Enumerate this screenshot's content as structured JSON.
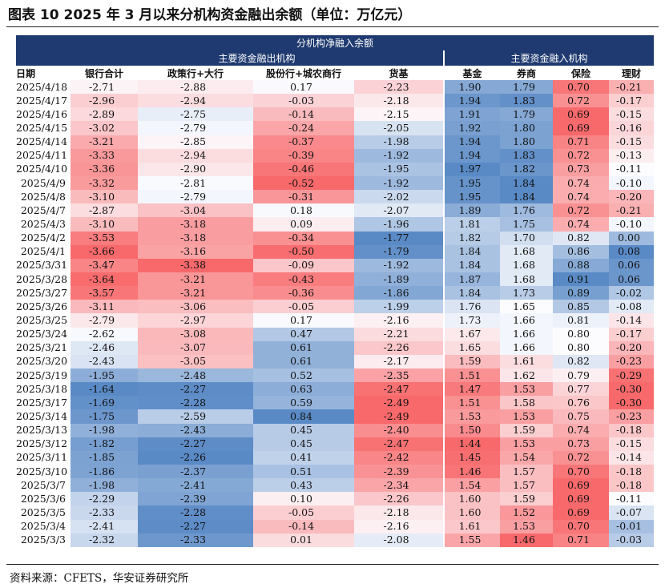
{
  "title": "图表 10 2025 年 3 月以来分机构资金融出余额（单位：万亿元）",
  "source": "资料来源：CFETS，华安证券研究所",
  "table": {
    "caption": "分机构净融入余额",
    "group_lenders": "主要资金融出机构",
    "group_borrowers": "主要资金融入机构",
    "columns": [
      "日期",
      "银行合计",
      "政策行+大行",
      "股份行+城农商行",
      "货基",
      "基金",
      "券商",
      "保险",
      "理财"
    ],
    "rows": [
      [
        "2025/4/18",
        "-2.71",
        "-2.88",
        "0.17",
        "-2.23",
        "1.90",
        "1.79",
        "0.70",
        "-0.21"
      ],
      [
        "2025/4/17",
        "-2.96",
        "-2.94",
        "-0.03",
        "-2.18",
        "1.94",
        "1.83",
        "0.72",
        "-0.17"
      ],
      [
        "2025/4/16",
        "-2.89",
        "-2.75",
        "-0.14",
        "-2.15",
        "1.91",
        "1.79",
        "0.69",
        "-0.15"
      ],
      [
        "2025/4/15",
        "-3.02",
        "-2.79",
        "-0.24",
        "-2.05",
        "1.92",
        "1.80",
        "0.69",
        "-0.16"
      ],
      [
        "2025/4/14",
        "-3.21",
        "-2.85",
        "-0.37",
        "-1.98",
        "1.94",
        "1.80",
        "0.71",
        "-0.15"
      ],
      [
        "2025/4/11",
        "-3.33",
        "-2.94",
        "-0.39",
        "-1.92",
        "1.94",
        "1.83",
        "0.72",
        "-0.13"
      ],
      [
        "2025/4/10",
        "-3.36",
        "-2.90",
        "-0.46",
        "-1.95",
        "1.97",
        "1.82",
        "0.73",
        "-0.11"
      ],
      [
        "2025/4/9",
        "-3.32",
        "-2.81",
        "-0.52",
        "-1.92",
        "1.95",
        "1.84",
        "0.74",
        "-0.10"
      ],
      [
        "2025/4/8",
        "-3.10",
        "-2.79",
        "-0.31",
        "-2.02",
        "1.95",
        "1.84",
        "0.74",
        "-0.20"
      ],
      [
        "2025/4/7",
        "-2.87",
        "-3.04",
        "0.18",
        "-2.07",
        "1.89",
        "1.76",
        "0.72",
        "-0.21"
      ],
      [
        "2025/4/3",
        "-3.10",
        "-3.18",
        "0.09",
        "-1.96",
        "1.81",
        "1.75",
        "0.74",
        "-0.10"
      ],
      [
        "2025/4/2",
        "-3.53",
        "-3.18",
        "-0.34",
        "-1.77",
        "1.82",
        "1.70",
        "0.82",
        "0.00"
      ],
      [
        "2025/4/1",
        "-3.66",
        "-3.16",
        "-0.50",
        "-1.79",
        "1.84",
        "1.68",
        "0.86",
        "0.08"
      ],
      [
        "2025/3/31",
        "-3.47",
        "-3.38",
        "-0.09",
        "-1.92",
        "1.84",
        "1.68",
        "0.88",
        "0.06"
      ],
      [
        "2025/3/28",
        "-3.64",
        "-3.21",
        "-0.43",
        "-1.89",
        "1.87",
        "1.68",
        "0.91",
        "0.06"
      ],
      [
        "2025/3/27",
        "-3.57",
        "-3.21",
        "-0.36",
        "-1.86",
        "1.84",
        "1.73",
        "0.89",
        "-0.02"
      ],
      [
        "2025/3/26",
        "-3.11",
        "-3.06",
        "-0.05",
        "-1.99",
        "1.76",
        "1.65",
        "0.85",
        "-0.08"
      ],
      [
        "2025/3/25",
        "-2.79",
        "-2.97",
        "0.17",
        "-2.16",
        "1.73",
        "1.66",
        "0.81",
        "-0.14"
      ],
      [
        "2025/3/24",
        "-2.62",
        "-3.08",
        "0.47",
        "-2.21",
        "1.67",
        "1.66",
        "0.80",
        "-0.17"
      ],
      [
        "2025/3/21",
        "-2.46",
        "-3.07",
        "0.61",
        "-2.26",
        "1.65",
        "1.66",
        "0.80",
        "-0.20"
      ],
      [
        "2025/3/20",
        "-2.43",
        "-3.05",
        "0.61",
        "-2.17",
        "1.59",
        "1.61",
        "0.82",
        "-0.23"
      ],
      [
        "2025/3/19",
        "-1.95",
        "-2.48",
        "0.52",
        "-2.35",
        "1.51",
        "1.62",
        "0.79",
        "-0.29"
      ],
      [
        "2025/3/18",
        "-1.64",
        "-2.27",
        "0.63",
        "-2.47",
        "1.47",
        "1.53",
        "0.77",
        "-0.30"
      ],
      [
        "2025/3/17",
        "-1.69",
        "-2.28",
        "0.59",
        "-2.49",
        "1.51",
        "1.58",
        "0.76",
        "-0.30"
      ],
      [
        "2025/3/14",
        "-1.75",
        "-2.59",
        "0.84",
        "-2.49",
        "1.53",
        "1.53",
        "0.75",
        "-0.23"
      ],
      [
        "2025/3/13",
        "-1.98",
        "-2.43",
        "0.45",
        "-2.40",
        "1.50",
        "1.59",
        "0.74",
        "-0.18"
      ],
      [
        "2025/3/12",
        "-1.82",
        "-2.27",
        "0.45",
        "-2.47",
        "1.44",
        "1.53",
        "0.73",
        "-0.15"
      ],
      [
        "2025/3/11",
        "-1.85",
        "-2.26",
        "0.41",
        "-2.42",
        "1.45",
        "1.54",
        "0.72",
        "-0.14"
      ],
      [
        "2025/3/10",
        "-1.86",
        "-2.37",
        "0.51",
        "-2.39",
        "1.46",
        "1.57",
        "0.70",
        "-0.18"
      ],
      [
        "2025/3/7",
        "-1.98",
        "-2.41",
        "0.43",
        "-2.34",
        "1.54",
        "1.57",
        "0.69",
        "-0.18"
      ],
      [
        "2025/3/6",
        "-2.29",
        "-2.39",
        "0.10",
        "-2.26",
        "1.60",
        "1.59",
        "0.69",
        "-0.11"
      ],
      [
        "2025/3/5",
        "-2.33",
        "-2.28",
        "-0.05",
        "-2.18",
        "1.60",
        "1.52",
        "0.69",
        "-0.07"
      ],
      [
        "2025/3/4",
        "-2.41",
        "-2.27",
        "-0.14",
        "-2.16",
        "1.61",
        "1.53",
        "0.70",
        "-0.01"
      ],
      [
        "2025/3/3",
        "-2.32",
        "-2.33",
        "0.01",
        "-2.08",
        "1.55",
        "1.46",
        "0.71",
        "-0.03"
      ]
    ]
  },
  "colors": {
    "header_bg": "#1f3a70",
    "low": "#f8696b",
    "mid": "#fcfcff",
    "high": "#5a8ac6"
  }
}
